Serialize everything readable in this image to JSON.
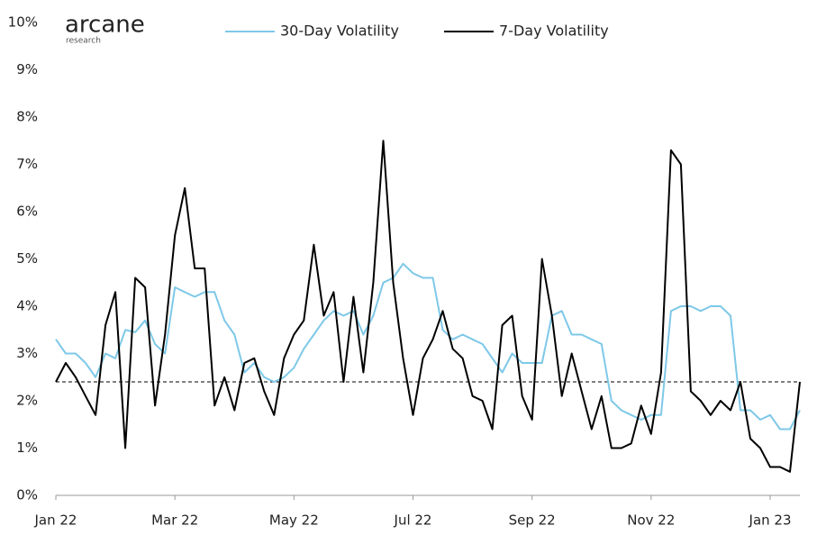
{
  "logo": {
    "name": "arcane",
    "tagline": "research"
  },
  "chart_data": {
    "type": "line",
    "categories": [
      "Jan 22",
      null,
      null,
      null,
      null,
      null,
      null,
      null,
      null,
      null,
      null,
      null,
      "Mar 22",
      null,
      null,
      null,
      null,
      null,
      null,
      null,
      null,
      null,
      null,
      null,
      "May 22",
      null,
      null,
      null,
      null,
      null,
      null,
      null,
      null,
      null,
      null,
      null,
      "Jul 22",
      null,
      null,
      null,
      null,
      null,
      null,
      null,
      null,
      null,
      null,
      null,
      "Sep 22",
      null,
      null,
      null,
      null,
      null,
      null,
      null,
      null,
      null,
      null,
      null,
      "Nov 22",
      null,
      null,
      null,
      null,
      null,
      null,
      null,
      null,
      null,
      null,
      null,
      "Jan 23",
      null,
      null,
      null
    ],
    "series": [
      {
        "name": "30-Day Volatility",
        "color": "#7ec8e8",
        "values": [
          3.3,
          3.0,
          3.0,
          2.8,
          2.5,
          3.0,
          2.9,
          3.5,
          3.45,
          3.7,
          3.2,
          3.0,
          4.4,
          4.3,
          4.2,
          4.3,
          4.3,
          3.7,
          3.4,
          2.6,
          2.8,
          2.5,
          2.4,
          2.5,
          2.7,
          3.1,
          3.4,
          3.7,
          3.9,
          3.8,
          3.9,
          3.4,
          3.8,
          4.5,
          4.6,
          4.9,
          4.7,
          4.6,
          4.6,
          3.5,
          3.3,
          3.4,
          3.3,
          3.2,
          2.9,
          2.6,
          3.0,
          2.8,
          2.8,
          2.8,
          3.8,
          3.9,
          3.4,
          3.4,
          3.3,
          3.2,
          2.0,
          1.8,
          1.7,
          1.6,
          1.7,
          1.7,
          3.9,
          4.0,
          4.0,
          3.9,
          4.0,
          4.0,
          3.8,
          1.8,
          1.8,
          1.6,
          1.7,
          1.4,
          1.4,
          1.8
        ]
      },
      {
        "name": "7-Day Volatility",
        "color": "#000000",
        "values": [
          2.4,
          2.8,
          2.5,
          2.1,
          1.7,
          3.6,
          4.3,
          1.0,
          4.6,
          4.4,
          1.9,
          3.4,
          5.5,
          6.5,
          4.8,
          4.8,
          1.9,
          2.5,
          1.8,
          2.8,
          2.9,
          2.2,
          1.7,
          2.9,
          3.4,
          3.7,
          5.3,
          3.8,
          4.3,
          2.4,
          4.2,
          2.6,
          4.5,
          7.5,
          4.5,
          2.9,
          1.7,
          2.9,
          3.3,
          3.9,
          3.1,
          2.9,
          2.1,
          2.0,
          1.4,
          3.6,
          3.8,
          2.1,
          1.6,
          5.0,
          3.8,
          2.1,
          3.0,
          2.2,
          1.4,
          2.1,
          1.0,
          1.0,
          1.1,
          1.9,
          1.3,
          2.6,
          7.3,
          7.0,
          2.2,
          2.0,
          1.7,
          2.0,
          1.8,
          2.4,
          1.2,
          1.0,
          0.6,
          0.6,
          0.5,
          2.4
        ]
      }
    ],
    "ylim": [
      0,
      10
    ],
    "yticks": [
      {
        "value": 0,
        "label": "0%"
      },
      {
        "value": 1,
        "label": "1%"
      },
      {
        "value": 2,
        "label": "2%"
      },
      {
        "value": 3,
        "label": "3%"
      },
      {
        "value": 4,
        "label": "4%"
      },
      {
        "value": 5,
        "label": "5%"
      },
      {
        "value": 6,
        "label": "6%"
      },
      {
        "value": 7,
        "label": "7%"
      },
      {
        "value": 8,
        "label": "8%"
      },
      {
        "value": 9,
        "label": "9%"
      },
      {
        "value": 10,
        "label": "10%"
      }
    ],
    "reference_line": 2.4,
    "grid": false
  }
}
